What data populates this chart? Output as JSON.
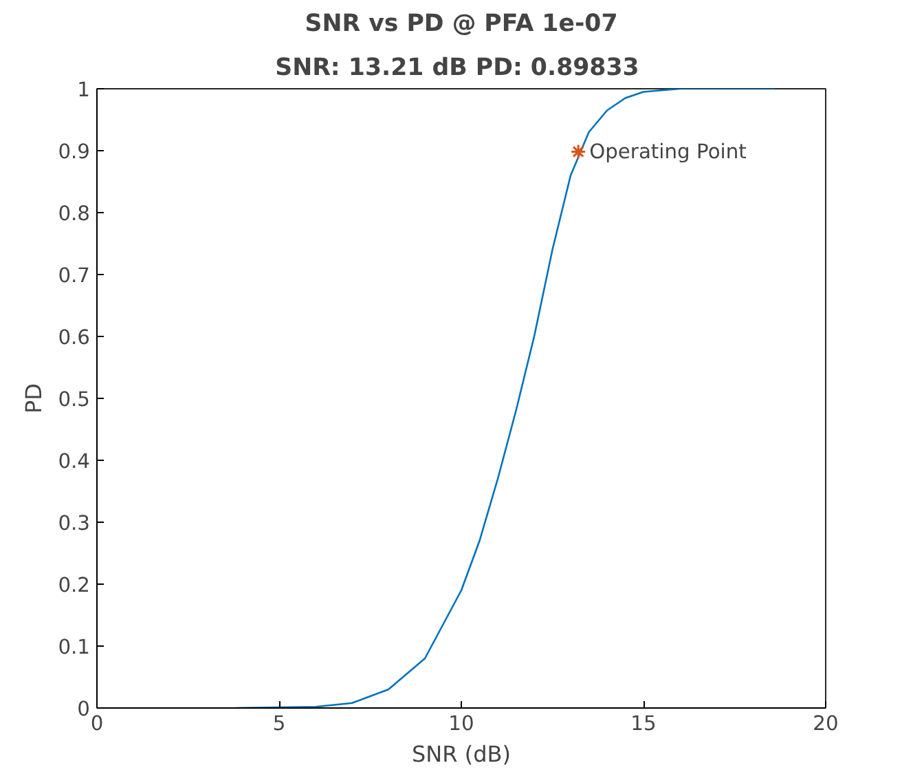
{
  "chart_data": {
    "type": "line",
    "title": "SNR vs PD @ PFA 1e-07",
    "subtitle": "SNR: 13.21 dB  PD: 0.89833",
    "xlabel": "SNR (dB)",
    "ylabel": "PD",
    "xlim": [
      0,
      20
    ],
    "ylim": [
      0,
      1
    ],
    "xticks": [
      0,
      5,
      10,
      15,
      20
    ],
    "yticks": [
      0,
      0.1,
      0.2,
      0.3,
      0.4,
      0.5,
      0.6,
      0.7,
      0.8,
      0.9,
      1
    ],
    "grid": false,
    "series": [
      {
        "color": "#0072bd",
        "x": [
          3.8,
          5,
          6,
          7,
          8,
          9,
          10,
          10.5,
          11,
          11.5,
          12,
          12.5,
          13,
          13.5,
          14,
          14.5,
          15,
          16,
          18.6
        ],
        "values": [
          0,
          0.001,
          0.002,
          0.008,
          0.03,
          0.08,
          0.19,
          0.27,
          0.37,
          0.48,
          0.6,
          0.74,
          0.86,
          0.93,
          0.965,
          0.985,
          0.995,
          1,
          1
        ]
      },
      {
        "type": "scatter",
        "marker": "cross",
        "color": "#d95319",
        "x": [
          13.21
        ],
        "values": [
          0.89833
        ]
      }
    ],
    "annotations": [
      {
        "text": "Operating Point",
        "x": 13.21,
        "y": 0.89833
      }
    ]
  }
}
